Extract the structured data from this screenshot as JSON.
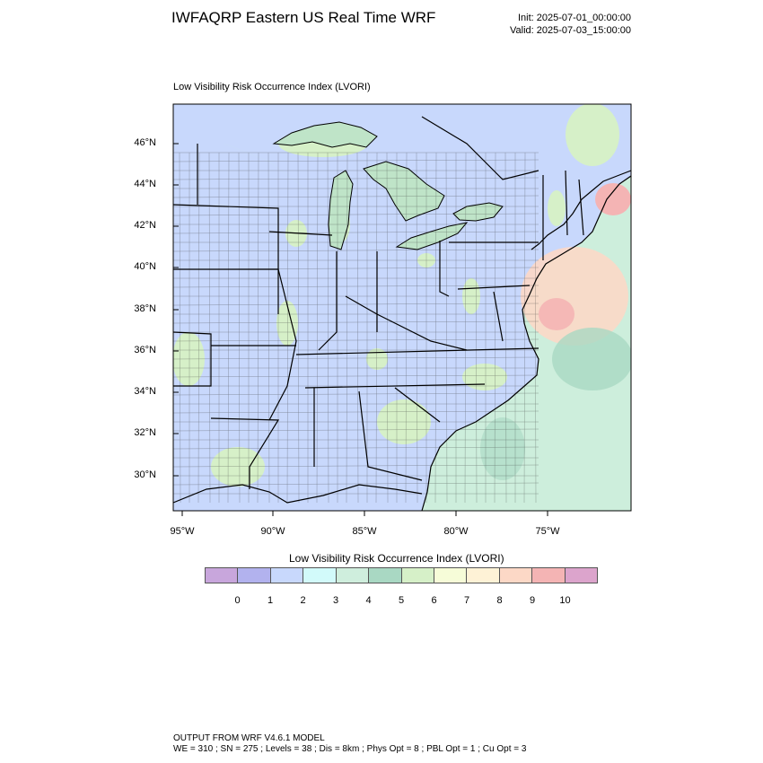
{
  "header": {
    "title": "IWFAQRP Eastern US Real Time WRF",
    "init": "Init: 2025-07-01_00:00:00",
    "valid": "Valid: 2025-07-03_15:00:00"
  },
  "plot": {
    "title": "Low Visibility Risk Occurrence Index   (LVORI)"
  },
  "axes": {
    "lat_labels": [
      "46°N",
      "44°N",
      "42°N",
      "40°N",
      "38°N",
      "36°N",
      "34°N",
      "32°N",
      "30°N"
    ],
    "lon_labels": [
      "95°W",
      "90°W",
      "85°W",
      "80°W",
      "75°W"
    ]
  },
  "legend": {
    "title": "Low Visibility Risk Occurrence Index  (LVORI)",
    "colors": [
      "#c8a6dc",
      "#b2b2ee",
      "#c8d8fc",
      "#d2fafa",
      "#cfeedd",
      "#a9d8c3",
      "#d6f0c8",
      "#f6fcd8",
      "#fef2d6",
      "#fcd8c6",
      "#f4b4b4",
      "#dca4cc"
    ],
    "ticks": [
      "0",
      "1",
      "2",
      "3",
      "4",
      "5",
      "6",
      "7",
      "8",
      "9",
      "10"
    ]
  },
  "footer": {
    "line1": "OUTPUT FROM WRF V4.6.1 MODEL",
    "line2": "WE = 310 ; SN = 275 ; Levels = 38 ; Dis = 8km ; Phys Opt = 8 ; PBL Opt = 1 ; Cu Opt = 3"
  }
}
